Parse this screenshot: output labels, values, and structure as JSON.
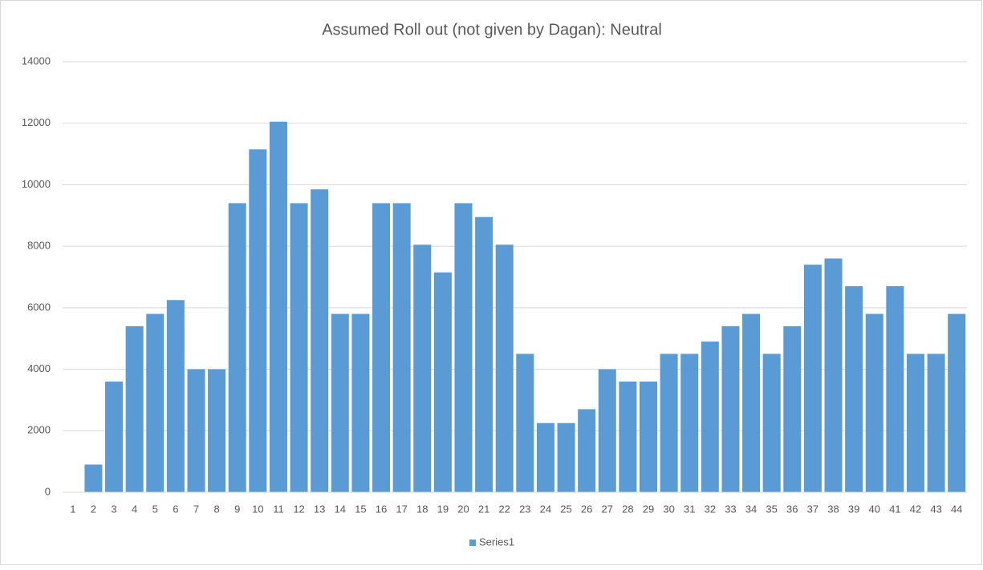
{
  "chart_data": {
    "type": "bar",
    "title": "Assumed Roll out (not given by Dagan): Neutral",
    "categories": [
      1,
      2,
      3,
      4,
      5,
      6,
      7,
      8,
      9,
      10,
      11,
      12,
      13,
      14,
      15,
      16,
      17,
      18,
      19,
      20,
      21,
      22,
      23,
      24,
      25,
      26,
      27,
      28,
      29,
      30,
      31,
      32,
      33,
      34,
      35,
      36,
      37,
      38,
      39,
      40,
      41,
      42,
      43,
      44
    ],
    "series": [
      {
        "name": "Series1",
        "color": "#5b9bd5",
        "values": [
          0,
          900,
          3600,
          5400,
          5800,
          6250,
          4000,
          4000,
          9400,
          11150,
          12050,
          9400,
          9850,
          5800,
          5800,
          9400,
          9400,
          8050,
          7150,
          9400,
          8950,
          8050,
          4500,
          2250,
          2250,
          2700,
          4000,
          3600,
          3600,
          4500,
          4500,
          4900,
          5400,
          5800,
          4500,
          5400,
          7400,
          7600,
          6700,
          5800,
          6700,
          4500,
          4500,
          5800
        ]
      }
    ],
    "ylim": [
      0,
      14000
    ],
    "yticks": [
      0,
      2000,
      4000,
      6000,
      8000,
      10000,
      12000,
      14000
    ],
    "grid": true,
    "legend": "bottom"
  }
}
